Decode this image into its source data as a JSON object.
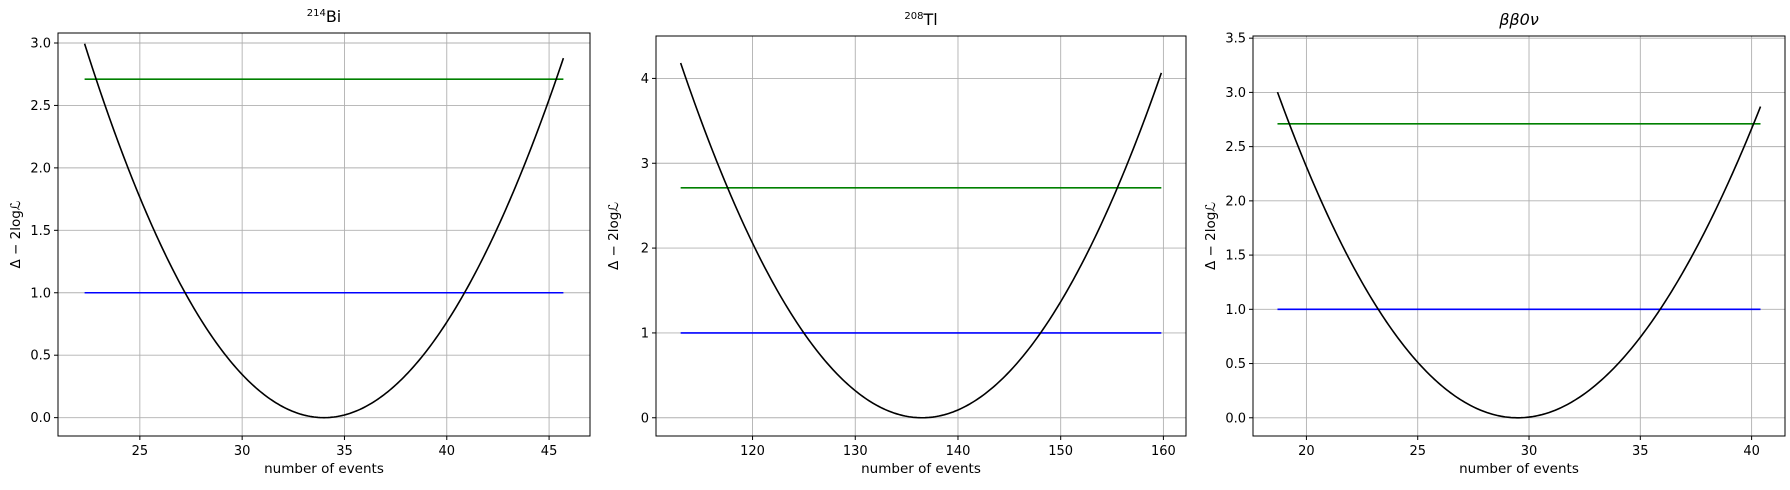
{
  "chart_data": [
    {
      "type": "line",
      "title_sup": "214",
      "title_main": "Bi",
      "xlabel": "number of events",
      "ylabel": "Δ − 2logℒ",
      "xlim": [
        21.0,
        47.0
      ],
      "ylim": [
        -0.147,
        3.08
      ],
      "xticks": [
        25,
        30,
        35,
        40,
        45
      ],
      "yticks": [
        0.0,
        0.5,
        1.0,
        1.5,
        2.0,
        2.5,
        3.0
      ],
      "xtick_labels": [
        "25",
        "30",
        "35",
        "40",
        "45"
      ],
      "ytick_labels": [
        "0.0",
        "0.5",
        "1.0",
        "1.5",
        "2.0",
        "2.5",
        "3.0"
      ],
      "grid": true,
      "curve": {
        "color": "#000000",
        "xmin": 22.3,
        "xmax": 45.7,
        "x0": 34.0,
        "a": 0.02145,
        "b": 3.6e-05
      },
      "hlines": [
        {
          "y": 2.71,
          "x": [
            22.3,
            45.7
          ],
          "color": "#008000"
        },
        {
          "y": 1.0,
          "x": [
            22.3,
            45.7
          ],
          "color": "#0000ff"
        }
      ]
    },
    {
      "type": "line",
      "title_sup": "208",
      "title_main": "Tl",
      "xlabel": "number of events",
      "ylabel": "Δ − 2logℒ",
      "xlim": [
        110.6,
        162.2
      ],
      "ylim": [
        -0.215,
        4.5
      ],
      "xticks": [
        120,
        130,
        140,
        150,
        160
      ],
      "yticks": [
        0,
        1,
        2,
        3,
        4
      ],
      "xtick_labels": [
        "120",
        "130",
        "140",
        "150",
        "160"
      ],
      "ytick_labels": [
        "0",
        "1",
        "2",
        "3",
        "4"
      ],
      "grid": true,
      "curve": {
        "color": "#000000",
        "xmin": 113.0,
        "xmax": 159.8,
        "x0": 136.5,
        "a": 0.00753,
        "b": 1.8e-06
      },
      "hlines": [
        {
          "y": 2.71,
          "x": [
            113.0,
            159.8
          ],
          "color": "#008000"
        },
        {
          "y": 1.0,
          "x": [
            113.0,
            159.8
          ],
          "color": "#0000ff"
        }
      ]
    },
    {
      "type": "line",
      "title_main": "ββ0ν",
      "xlabel": "number of events",
      "ylabel": "Δ − 2logℒ",
      "xlim": [
        17.6,
        41.5
      ],
      "ylim": [
        -0.168,
        3.52
      ],
      "xticks": [
        20,
        25,
        30,
        35,
        40
      ],
      "yticks": [
        0.0,
        0.5,
        1.0,
        1.5,
        2.0,
        2.5,
        3.0,
        3.5
      ],
      "xtick_labels": [
        "20",
        "25",
        "30",
        "35",
        "40"
      ],
      "ytick_labels": [
        "0.0",
        "0.5",
        "1.0",
        "1.5",
        "2.0",
        "2.5",
        "3.0",
        "3.5"
      ],
      "grid": true,
      "curve": {
        "color": "#000000",
        "xmin": 18.7,
        "xmax": 40.4,
        "x0": 29.5,
        "a": 0.02495,
        "b": 7.35e-05
      },
      "hlines": [
        {
          "y": 2.71,
          "x": [
            18.7,
            40.4
          ],
          "color": "#008000"
        },
        {
          "y": 1.0,
          "x": [
            18.7,
            40.4
          ],
          "color": "#0000ff"
        }
      ]
    }
  ]
}
